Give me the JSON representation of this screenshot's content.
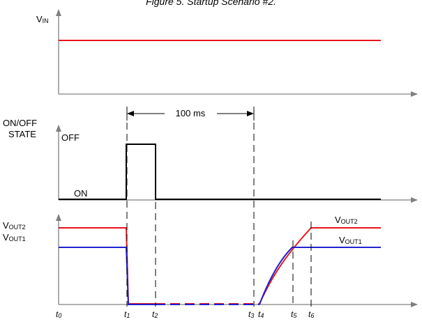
{
  "figure_caption": "Figure 5. Startup Scenario #2.",
  "labels": {
    "vin_main": "V",
    "vin_sub": "IN",
    "onoff_line1": "ON/OFF",
    "onoff_line2": "STATE",
    "off": "OFF",
    "on": "ON",
    "duration": "100 ms",
    "vout_main": "V",
    "vout2_sub": "OUT2",
    "vout1_sub": "OUT1"
  },
  "time_labels": [
    {
      "main": "t",
      "sub": "0"
    },
    {
      "main": "t",
      "sub": "1"
    },
    {
      "main": "t",
      "sub": "2"
    },
    {
      "main": "t",
      "sub": "3"
    },
    {
      "main": "t",
      "sub": "4"
    },
    {
      "main": "t",
      "sub": "5"
    },
    {
      "main": "t",
      "sub": "6"
    }
  ],
  "colors": {
    "axis": "#808080",
    "vin": "#e8141b",
    "onoff": "#000000",
    "vout2": "#e8141b",
    "vout1": "#2020d0",
    "dash": "#000000"
  }
}
